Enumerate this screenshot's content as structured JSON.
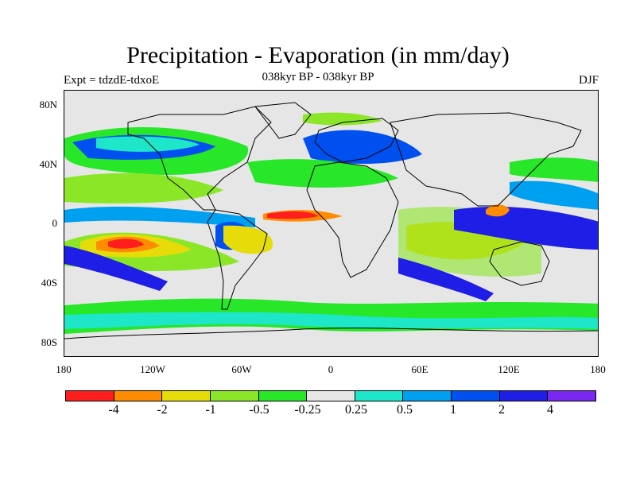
{
  "title": "Precipitation - Evaporation (in mm/day)",
  "subtitle": "038kyr BP - 038kyr BP",
  "left_note": "Expt = tdzdE-tdxoE",
  "right_note": "DJF",
  "lat_labels": [
    "80N",
    "40N",
    "0",
    "40S",
    "80S"
  ],
  "lon_labels": [
    "180",
    "120W",
    "60W",
    "0",
    "60E",
    "120E",
    "180"
  ],
  "colorbar": {
    "colors": [
      "#ff1e1e",
      "#ff8c00",
      "#e6dc0a",
      "#8ce628",
      "#28e628",
      "#e6e6e6",
      "#1ee6c8",
      "#00a0f0",
      "#0050f0",
      "#1e1ee6",
      "#7828f0"
    ],
    "labels": [
      "-4",
      "-2",
      "-1",
      "-0.5",
      "-0.25",
      "0.25",
      "0.5",
      "1",
      "2",
      "4"
    ]
  },
  "map": {
    "background_color": "#e6e6e6",
    "coastline_color": "#000000"
  }
}
